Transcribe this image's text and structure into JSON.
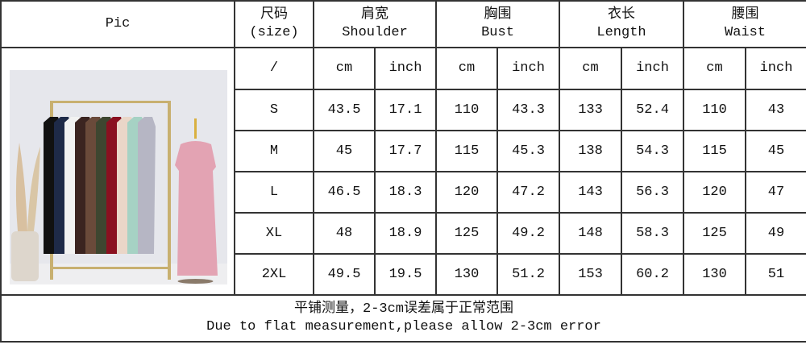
{
  "header": {
    "pic": "Pic",
    "size_cn": "尺码",
    "size_en": "(size)",
    "columns": [
      {
        "cn": "肩宽",
        "en": "Shoulder"
      },
      {
        "cn": "胸围",
        "en": "Bust"
      },
      {
        "cn": "衣长",
        "en": "Length"
      },
      {
        "cn": "腰围",
        "en": "Waist"
      }
    ]
  },
  "units": {
    "size": "/",
    "cm": "cm",
    "inch": "inch"
  },
  "rows": [
    {
      "size": "S",
      "values": [
        "43.5",
        "17.1",
        "110",
        "43.3",
        "133",
        "52.4",
        "110",
        "43"
      ]
    },
    {
      "size": "M",
      "values": [
        "45",
        "17.7",
        "115",
        "45.3",
        "138",
        "54.3",
        "115",
        "45"
      ]
    },
    {
      "size": "L",
      "values": [
        "46.5",
        "18.3",
        "120",
        "47.2",
        "143",
        "56.3",
        "120",
        "47"
      ]
    },
    {
      "size": "XL",
      "values": [
        "48",
        "18.9",
        "125",
        "49.2",
        "148",
        "58.3",
        "125",
        "49"
      ]
    },
    {
      "size": "2XL",
      "values": [
        "49.5",
        "19.5",
        "130",
        "51.2",
        "153",
        "60.2",
        "130",
        "51"
      ]
    }
  ],
  "footer": {
    "note_cn": "平铺测量，2-3cm误差属于正常范围",
    "note_en": "Due to flat measurement,please allow 2-3cm error"
  },
  "photo": {
    "dress_colors": [
      "#111111",
      "#1e2a48",
      "#f2f2f2",
      "#3b2420",
      "#6a4a3a",
      "#3e4630",
      "#8a1020",
      "#ead6c8",
      "#a6d2c4",
      "#b6b6c4"
    ],
    "featured_color": "#e3a3b3"
  }
}
